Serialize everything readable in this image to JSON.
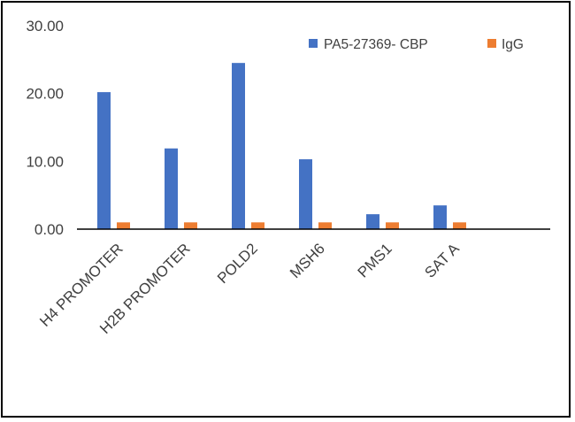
{
  "chart_data": {
    "type": "bar",
    "title": "",
    "xlabel": "",
    "ylabel": "",
    "categories": [
      "H4 PROMOTER",
      "H2B PROMOTER",
      "POLD2",
      "MSH6",
      "PMS1",
      "SAT A"
    ],
    "series": [
      {
        "name": "PA5-27369- CBP",
        "color": "#4472C4",
        "values": [
          20.2,
          11.9,
          24.5,
          10.3,
          2.2,
          3.5
        ]
      },
      {
        "name": "IgG",
        "color": "#ED7D31",
        "values": [
          1.0,
          1.0,
          1.0,
          1.0,
          1.0,
          1.0
        ]
      }
    ],
    "ylim": [
      0,
      30
    ],
    "yticks": [
      "0.00",
      "10.00",
      "20.00",
      "30.00"
    ],
    "grid": false,
    "legend_position": "top-right"
  }
}
